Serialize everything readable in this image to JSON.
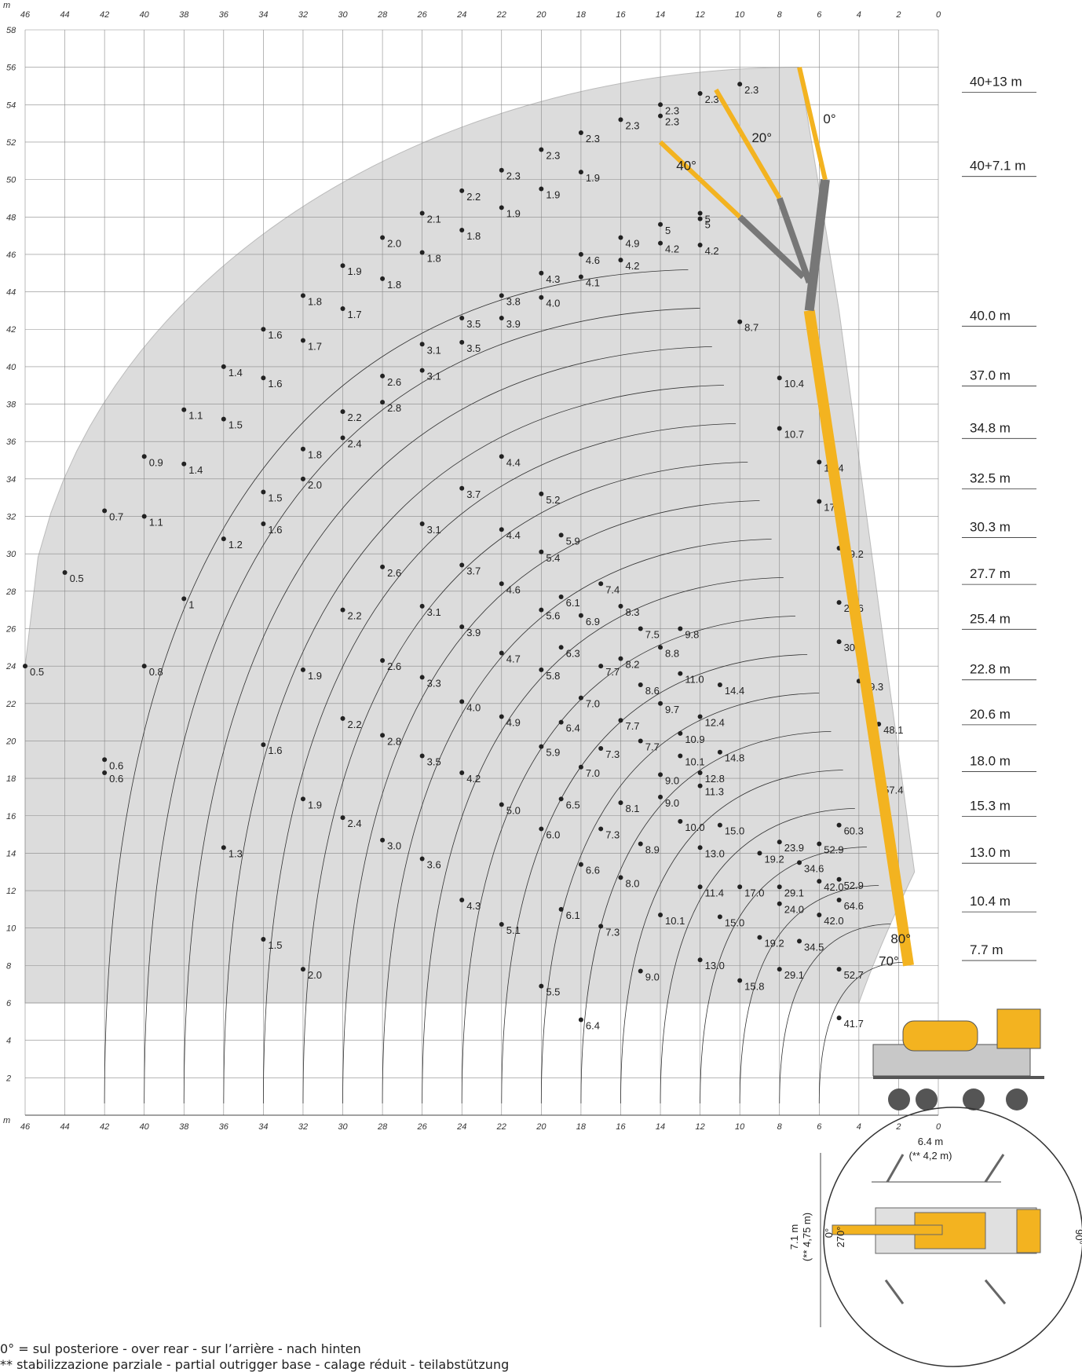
{
  "axis": {
    "unit": "m",
    "x_ticks": [
      46,
      44,
      42,
      40,
      38,
      36,
      34,
      32,
      30,
      28,
      26,
      24,
      22,
      20,
      18,
      16,
      14,
      12,
      10,
      8,
      6,
      4,
      2,
      0
    ],
    "y_ticks": [
      58,
      56,
      54,
      52,
      50,
      48,
      46,
      44,
      42,
      40,
      38,
      36,
      34,
      32,
      30,
      28,
      26,
      24,
      22,
      20,
      18,
      16,
      14,
      12,
      10,
      8,
      6,
      4,
      2
    ]
  },
  "boom_lengths": [
    "40+13 m",
    "40+7.1 m",
    "40.0 m",
    "37.0 m",
    "34.8 m",
    "32.5 m",
    "30.3 m",
    "27.7 m",
    "25.4 m",
    "22.8 m",
    "20.6 m",
    "18.0 m",
    "15.3 m",
    "13.0 m",
    "10.4 m",
    "7.7 m"
  ],
  "angle_labels": [
    "0°",
    "20°",
    "40°",
    "80°",
    "70°"
  ],
  "chart_data": {
    "type": "scatter",
    "title": "",
    "xlabel": "m",
    "ylabel": "m",
    "xlim": [
      46,
      0
    ],
    "ylim": [
      0,
      58
    ],
    "series": [
      {
        "name": "40+13 m",
        "points": [
          [
            46,
            24,
            "0.5"
          ],
          [
            44,
            29,
            "0.5"
          ],
          [
            42,
            32.3,
            "0.7"
          ],
          [
            40,
            35.2,
            "0.9"
          ],
          [
            38,
            37.7,
            "1.1"
          ],
          [
            36,
            40,
            "1.4"
          ],
          [
            34,
            42,
            "1.6"
          ],
          [
            32,
            43.8,
            "1.8"
          ],
          [
            30,
            45.4,
            "1.9"
          ],
          [
            28,
            46.9,
            "2.0"
          ],
          [
            26,
            48.2,
            "2.1"
          ],
          [
            24,
            49.4,
            "2.2"
          ],
          [
            22,
            50.5,
            "2.3"
          ],
          [
            20,
            51.6,
            "2.3"
          ],
          [
            18,
            52.5,
            "2.3"
          ],
          [
            16,
            53.2,
            "2.3"
          ],
          [
            14,
            54,
            "2.3"
          ],
          [
            12,
            54.6,
            "2.3"
          ],
          [
            10,
            55.1,
            "2.3"
          ]
        ]
      },
      {
        "name": "40+13 m 20°",
        "points": [
          [
            42,
            19,
            "0.6"
          ],
          [
            40,
            24,
            "0.8"
          ],
          [
            38,
            27.6,
            "1"
          ],
          [
            36,
            30.8,
            "1.2"
          ],
          [
            34,
            33.3,
            "1.5"
          ],
          [
            32,
            35.6,
            "1.8"
          ],
          [
            30,
            37.6,
            "2.2"
          ],
          [
            28,
            39.5,
            "2.6"
          ],
          [
            26,
            41.2,
            "3.1"
          ],
          [
            24,
            42.6,
            "3.5"
          ],
          [
            22,
            43.8,
            "3.8"
          ],
          [
            20,
            45,
            "4.3"
          ],
          [
            18,
            46,
            "4.6"
          ],
          [
            16,
            46.9,
            "4.9"
          ],
          [
            14,
            47.6,
            "5"
          ],
          [
            12,
            48.2,
            "5"
          ],
          [
            14,
            53.4,
            "2.3"
          ],
          [
            18,
            50.4,
            "1.9"
          ],
          [
            20,
            49.5,
            "1.9"
          ],
          [
            22,
            48.5,
            "1.9"
          ],
          [
            24,
            47.3,
            "1.8"
          ],
          [
            26,
            46.1,
            "1.8"
          ],
          [
            28,
            44.7,
            "1.8"
          ],
          [
            30,
            43.1,
            "1.7"
          ],
          [
            32,
            41.4,
            "1.7"
          ],
          [
            34,
            39.4,
            "1.6"
          ],
          [
            36,
            37.2,
            "1.5"
          ],
          [
            38,
            34.8,
            "1.4"
          ],
          [
            40,
            32,
            "1.1"
          ]
        ]
      },
      {
        "name": "40+13 m 40°",
        "points": [
          [
            42,
            18.3,
            "0.6"
          ],
          [
            34,
            31.6,
            "1.6"
          ],
          [
            32,
            34,
            "2.0"
          ],
          [
            30,
            36.2,
            "2.4"
          ],
          [
            28,
            38.1,
            "2.8"
          ],
          [
            26,
            39.8,
            "3.1"
          ],
          [
            24,
            41.3,
            "3.5"
          ],
          [
            22,
            42.6,
            "3.9"
          ],
          [
            20,
            43.7,
            "4.0"
          ],
          [
            18,
            44.8,
            "4.1"
          ],
          [
            16,
            45.7,
            "4.2"
          ],
          [
            14,
            46.6,
            "4.2"
          ],
          [
            12,
            47.9,
            "5"
          ]
        ]
      },
      {
        "name": "40+7.1 m",
        "points": [
          [
            36,
            14.3,
            "1.3"
          ],
          [
            34,
            9.4,
            "1.5"
          ],
          [
            32,
            7.8,
            "2.0"
          ],
          [
            34,
            19.8,
            "1.6"
          ],
          [
            32,
            16.9,
            "1.9"
          ],
          [
            30,
            15.9,
            "2.4"
          ],
          [
            32,
            23.8,
            "1.9"
          ],
          [
            30,
            21.2,
            "2.2"
          ],
          [
            28,
            20.3,
            "2.8"
          ],
          [
            28,
            14.7,
            "3.0"
          ],
          [
            26,
            13.7,
            "3.6"
          ],
          [
            30,
            27,
            "2.2"
          ],
          [
            28,
            24.3,
            "2.6"
          ],
          [
            26,
            23.4,
            "3.3"
          ],
          [
            26,
            19.2,
            "3.5"
          ],
          [
            24,
            18.3,
            "4.2"
          ],
          [
            24,
            11.5,
            "4.3"
          ],
          [
            28,
            29.3,
            "2.6"
          ],
          [
            26,
            27.2,
            "3.1"
          ],
          [
            24,
            26.1,
            "3.9"
          ],
          [
            24,
            22.1,
            "4.0"
          ],
          [
            22,
            21.3,
            "4.9"
          ],
          [
            22,
            16.6,
            "5.0"
          ],
          [
            22,
            10.2,
            "5.1"
          ],
          [
            26,
            31.6,
            "3.1"
          ],
          [
            24,
            29.4,
            "3.7"
          ],
          [
            22,
            28.4,
            "4.6"
          ],
          [
            22,
            24.7,
            "4.7"
          ],
          [
            20,
            23.8,
            "5.8"
          ],
          [
            20,
            19.7,
            "5.9"
          ],
          [
            20,
            15.3,
            "6.0"
          ],
          [
            20,
            6.9,
            "5.5"
          ],
          [
            24,
            33.5,
            "3.7"
          ],
          [
            22,
            31.3,
            "4.4"
          ],
          [
            20,
            30.1,
            "5.4"
          ],
          [
            20,
            27,
            "5.6"
          ],
          [
            19,
            25,
            "6.3"
          ],
          [
            19,
            21,
            "6.4"
          ],
          [
            19,
            16.9,
            "6.5"
          ],
          [
            19,
            11,
            "6.1"
          ],
          [
            18,
            5.1,
            "6.4"
          ],
          [
            22,
            35.2,
            "4.4"
          ],
          [
            20,
            33.2,
            "5.2"
          ],
          [
            19,
            31,
            "5.9"
          ],
          [
            19,
            27.7,
            "6.1"
          ],
          [
            18,
            26.7,
            "6.9"
          ],
          [
            18,
            22.3,
            "7.0"
          ],
          [
            18,
            18.6,
            "7.0"
          ],
          [
            18,
            13.4,
            "6.6"
          ]
        ]
      },
      {
        "name": "40.0 m",
        "points": [
          [
            17,
            24,
            "7.7"
          ],
          [
            17,
            19.6,
            "7.3"
          ],
          [
            17,
            15.3,
            "7.3"
          ],
          [
            17,
            10.1,
            "7.3"
          ],
          [
            17,
            28.4,
            "7.4"
          ],
          [
            16,
            27.2,
            "8.3"
          ],
          [
            16,
            24.4,
            "8.2"
          ],
          [
            16,
            21.1,
            "7.7"
          ],
          [
            16,
            16.7,
            "8.1"
          ],
          [
            16,
            12.7,
            "8.0"
          ],
          [
            15,
            26,
            "7.5"
          ],
          [
            15,
            23,
            "8.6"
          ],
          [
            15,
            20,
            "7.7"
          ],
          [
            15,
            14.5,
            "8.9"
          ],
          [
            15,
            7.7,
            "9.0"
          ],
          [
            14,
            25,
            "8.8"
          ],
          [
            14,
            22,
            "9.7"
          ],
          [
            14,
            18.2,
            "9.0"
          ],
          [
            14,
            17,
            "9.0"
          ],
          [
            14,
            10.7,
            "10.1"
          ],
          [
            13,
            26,
            "9.8"
          ],
          [
            13,
            23.6,
            "11.0"
          ],
          [
            13,
            20.4,
            "10.9"
          ],
          [
            13,
            19.2,
            "10.1"
          ],
          [
            13,
            15.7,
            "10.0"
          ],
          [
            12,
            21.3,
            "12.4"
          ],
          [
            12,
            18.3,
            "12.8"
          ],
          [
            12,
            17.6,
            "11.3"
          ],
          [
            12,
            14.3,
            "13.0"
          ],
          [
            12,
            12.2,
            "11.4"
          ],
          [
            12,
            8.3,
            "13.0"
          ],
          [
            11,
            23,
            "14.4"
          ],
          [
            11,
            19.4,
            "14.8"
          ],
          [
            11,
            15.5,
            "15.0"
          ],
          [
            11,
            10.6,
            "15.0"
          ],
          [
            10,
            12.2,
            "17.0"
          ],
          [
            10,
            7.2,
            "15.8"
          ],
          [
            9,
            14,
            "19.2"
          ],
          [
            9,
            9.5,
            "19.2"
          ],
          [
            8,
            14.6,
            "23.9"
          ],
          [
            8,
            12.2,
            "29.1"
          ],
          [
            8,
            11.3,
            "24.0"
          ],
          [
            8,
            7.8,
            "29.1"
          ],
          [
            7,
            13.5,
            "34.6"
          ],
          [
            7,
            9.3,
            "34.5"
          ],
          [
            6,
            14.5,
            "52.9"
          ],
          [
            6,
            12.5,
            "42.0"
          ],
          [
            6,
            10.7,
            "42.0"
          ],
          [
            5,
            15.5,
            "60.3"
          ],
          [
            5,
            12.6,
            "52.9"
          ],
          [
            5,
            11.5,
            "64.6"
          ],
          [
            5,
            7.8,
            "52.7"
          ],
          [
            5,
            5.2,
            "41.7"
          ]
        ]
      },
      {
        "name": "upper boom",
        "points": [
          [
            12,
            46.5,
            "4.2"
          ],
          [
            10,
            42.4,
            "8.7"
          ],
          [
            8,
            39.4,
            "10.4"
          ],
          [
            8,
            36.7,
            "10.7"
          ],
          [
            6,
            34.9,
            "14.4"
          ],
          [
            6,
            32.8,
            "17.6"
          ],
          [
            5,
            30.3,
            "19.2"
          ],
          [
            5,
            27.4,
            "25.6"
          ],
          [
            5,
            25.3,
            "30"
          ],
          [
            4,
            23.2,
            "39.3"
          ],
          [
            3,
            20.9,
            "48.1"
          ],
          [
            3,
            17.7,
            "57.4"
          ]
        ]
      }
    ]
  },
  "angle_arc_labels": [
    "80°",
    "70°"
  ],
  "outrigger": {
    "width": "6.4 m",
    "width_alt": "(** 4,2 m)",
    "length": "7.1 m",
    "length_alt": "(** 4,75 m)",
    "angle_0": "0°",
    "angle_90": "90°",
    "angle_270": "270°"
  },
  "notes": [
    "0° = sul posteriore - over rear - sur l’arrière - nach hinten",
    "** stabilizzazione parziale - partial outrigger base - calage réduit - teilabstützung"
  ],
  "colors": {
    "boom": "#f3b320",
    "shade": "#dcdcdc",
    "grid": "#8a8a8a"
  }
}
